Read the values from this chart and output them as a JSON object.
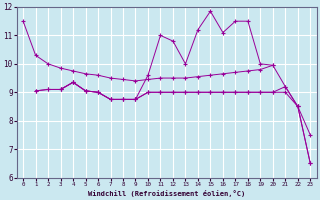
{
  "xlabel": "Windchill (Refroidissement éolien,°C)",
  "background_color": "#cbe8f0",
  "grid_color": "#ffffff",
  "line_color": "#990099",
  "xlim": [
    -0.5,
    23.5
  ],
  "ylim": [
    6,
    12
  ],
  "xticks": [
    0,
    1,
    2,
    3,
    4,
    5,
    6,
    7,
    8,
    9,
    10,
    11,
    12,
    13,
    14,
    15,
    16,
    17,
    18,
    19,
    20,
    21,
    22,
    23
  ],
  "yticks": [
    6,
    7,
    8,
    9,
    10,
    11,
    12
  ],
  "line1_x": [
    0,
    1,
    2,
    3,
    4,
    5,
    6,
    7,
    8,
    9,
    10,
    11,
    12,
    13,
    14,
    15,
    16,
    17,
    18,
    19,
    20,
    21,
    22,
    23
  ],
  "line1_y": [
    11.5,
    10.3,
    10.0,
    9.85,
    9.75,
    9.65,
    9.6,
    9.5,
    9.45,
    9.4,
    9.45,
    9.5,
    9.5,
    9.5,
    9.55,
    9.6,
    9.65,
    9.7,
    9.75,
    9.8,
    9.95,
    9.2,
    8.5,
    7.5
  ],
  "line2_x": [
    3,
    4,
    5,
    6,
    7,
    8,
    9,
    10,
    11,
    12,
    13,
    14,
    15,
    16,
    17,
    18,
    19,
    20
  ],
  "line2_y": [
    9.1,
    9.35,
    9.05,
    9.0,
    8.75,
    8.75,
    8.75,
    9.6,
    11.0,
    10.8,
    10.0,
    11.2,
    11.85,
    11.1,
    11.5,
    11.5,
    10.0,
    9.95
  ],
  "line3_x": [
    1,
    2,
    3,
    4,
    5,
    6,
    7,
    8,
    9,
    10,
    11,
    12,
    13,
    14,
    15,
    16,
    17,
    18,
    19,
    20,
    21,
    22,
    23
  ],
  "line3_y": [
    9.05,
    9.1,
    9.1,
    9.35,
    9.05,
    9.0,
    8.75,
    8.75,
    8.75,
    9.0,
    9.0,
    9.0,
    9.0,
    9.0,
    9.0,
    9.0,
    9.0,
    9.0,
    9.0,
    9.0,
    9.2,
    8.5,
    6.5
  ],
  "line4_x": [
    1,
    2,
    3,
    4,
    5,
    6,
    7,
    8,
    9,
    10,
    11,
    12,
    13,
    14,
    15,
    16,
    17,
    18,
    19,
    20,
    21,
    22,
    23
  ],
  "line4_y": [
    9.05,
    9.1,
    9.1,
    9.35,
    9.05,
    9.0,
    8.75,
    8.75,
    8.75,
    9.0,
    9.0,
    9.0,
    9.0,
    9.0,
    9.0,
    9.0,
    9.0,
    9.0,
    9.0,
    9.0,
    9.0,
    8.5,
    6.5
  ]
}
